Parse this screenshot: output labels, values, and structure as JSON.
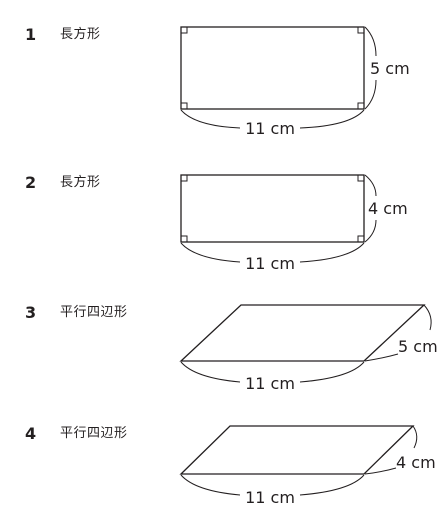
{
  "problems": [
    {
      "number": "1",
      "shape_name": "長方形",
      "base_label": "11 cm",
      "side_label": "5 cm"
    },
    {
      "number": "2",
      "shape_name": "長方形",
      "base_label": "11 cm",
      "side_label": "4 cm"
    },
    {
      "number": "3",
      "shape_name": "平行四辺形",
      "base_label": "11 cm",
      "side_label": "5 cm"
    },
    {
      "number": "4",
      "shape_name": "平行四辺形",
      "base_label": "11 cm",
      "side_label": "4 cm"
    }
  ]
}
